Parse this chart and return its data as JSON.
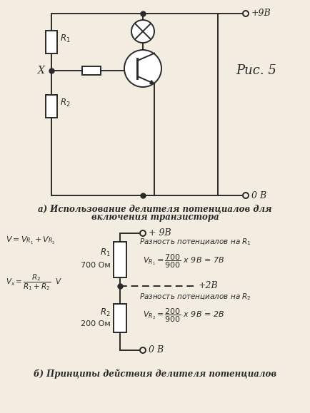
{
  "bg_color": "#f2ede0",
  "line_color": "#2a2a2a",
  "title_a_line1": "а) Использование делителя потенциалов для",
  "title_a_line2": "включения транзистора",
  "title_b": "б) Принципы действия делителя потенциалов",
  "label_9v_top": "+9В",
  "label_0v_top": "0 В",
  "label_9v_bot": "+ 9В",
  "label_0v_bot": "0 В",
  "label_X": "X",
  "label_ric5": "Рис. 5",
  "label_plus2v": "+2В",
  "text_R1_diff": "Разность потенциалов на R₁",
  "text_R2_diff": "Разность потенциалов на R₂"
}
